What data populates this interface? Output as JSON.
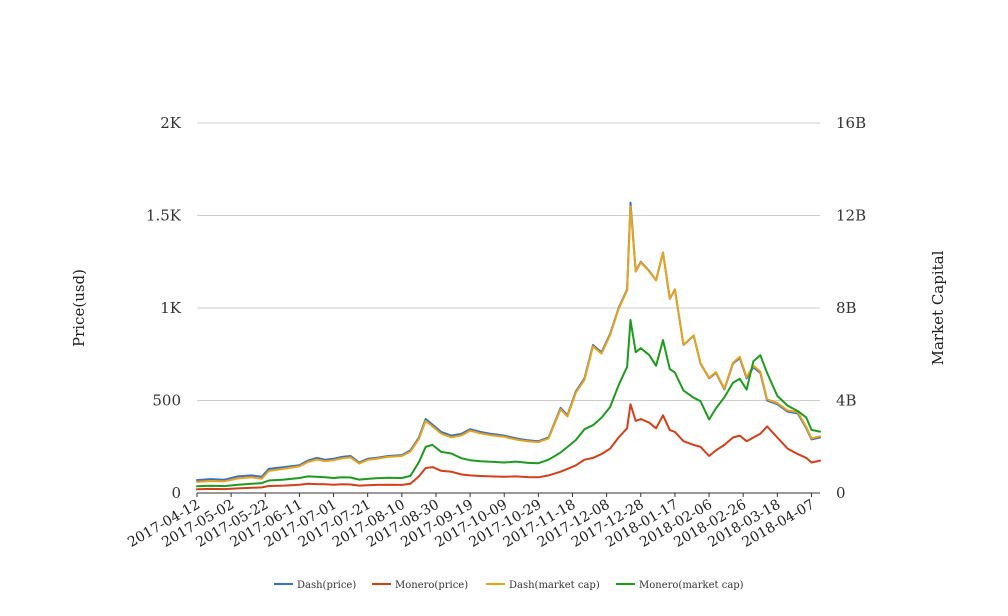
{
  "chart_data": {
    "type": "line",
    "ylabel_left": "Price(usd)",
    "ylabel_right": "Market Capital",
    "y_left_ticks": [
      "0",
      "500",
      "1K",
      "1.5K",
      "2K"
    ],
    "y_left_values": [
      0,
      500,
      1000,
      1500,
      2000
    ],
    "y_left_range": [
      0,
      2000
    ],
    "y_right_ticks": [
      "0",
      "4B",
      "8B",
      "12B",
      "16B"
    ],
    "y_right_values": [
      0,
      4000000000,
      8000000000,
      12000000000,
      16000000000
    ],
    "y_right_range": [
      0,
      16000000000
    ],
    "x_ticks": [
      "2017-04-12",
      "2017-05-02",
      "2017-05-22",
      "2017-06-11",
      "2017-07-01",
      "2017-07-21",
      "2017-08-10",
      "2017-08-30",
      "2017-09-19",
      "2017-10-09",
      "2017-10-29",
      "2017-11-18",
      "2017-12-08",
      "2017-12-28",
      "2018-01-17",
      "2018-02-06",
      "2018-02-26",
      "2018-03-18",
      "2018-04-07"
    ],
    "x_range": [
      "2017-04-12",
      "2018-04-12"
    ],
    "grid": true,
    "legend_position": "bottom",
    "series": [
      {
        "name": "Dash(price)",
        "color": "#3a6fc4",
        "axis": "left",
        "x": [
          "2017-04-12",
          "2017-04-20",
          "2017-04-28",
          "2017-05-06",
          "2017-05-14",
          "2017-05-20",
          "2017-05-24",
          "2017-06-02",
          "2017-06-11",
          "2017-06-16",
          "2017-06-21",
          "2017-06-26",
          "2017-07-01",
          "2017-07-06",
          "2017-07-11",
          "2017-07-16",
          "2017-07-21",
          "2017-07-26",
          "2017-08-02",
          "2017-08-10",
          "2017-08-15",
          "2017-08-20",
          "2017-08-24",
          "2017-08-28",
          "2017-09-02",
          "2017-09-08",
          "2017-09-14",
          "2017-09-19",
          "2017-09-25",
          "2017-10-01",
          "2017-10-09",
          "2017-10-16",
          "2017-10-23",
          "2017-10-29",
          "2017-11-04",
          "2017-11-11",
          "2017-11-15",
          "2017-11-20",
          "2017-11-25",
          "2017-11-30",
          "2017-12-05",
          "2017-12-10",
          "2017-12-15",
          "2017-12-18",
          "2017-12-20",
          "2017-12-22",
          "2017-12-25",
          "2017-12-28",
          "2018-01-02",
          "2018-01-06",
          "2018-01-10",
          "2018-01-14",
          "2018-01-17",
          "2018-01-22",
          "2018-01-28",
          "2018-02-01",
          "2018-02-06",
          "2018-02-10",
          "2018-02-15",
          "2018-02-20",
          "2018-02-24",
          "2018-02-28",
          "2018-03-04",
          "2018-03-08",
          "2018-03-12",
          "2018-03-18",
          "2018-03-24",
          "2018-03-30",
          "2018-04-04",
          "2018-04-07",
          "2018-04-12"
        ],
        "y": [
          70,
          75,
          72,
          90,
          95,
          88,
          130,
          140,
          150,
          175,
          190,
          180,
          185,
          195,
          200,
          165,
          185,
          190,
          200,
          205,
          230,
          300,
          400,
          370,
          330,
          310,
          320,
          345,
          330,
          320,
          310,
          295,
          285,
          280,
          300,
          460,
          420,
          550,
          620,
          800,
          760,
          860,
          1000,
          1060,
          1100,
          1570,
          1200,
          1250,
          1200,
          1150,
          1300,
          1050,
          1100,
          800,
          850,
          700,
          620,
          650,
          560,
          700,
          730,
          620,
          680,
          650,
          500,
          480,
          440,
          430,
          350,
          290,
          300
        ]
      },
      {
        "name": "Monero(price)",
        "color": "#d2401a",
        "axis": "left",
        "x": [
          "2017-04-12",
          "2017-04-20",
          "2017-04-28",
          "2017-05-06",
          "2017-05-14",
          "2017-05-20",
          "2017-05-24",
          "2017-06-02",
          "2017-06-11",
          "2017-06-16",
          "2017-06-21",
          "2017-06-26",
          "2017-07-01",
          "2017-07-06",
          "2017-07-11",
          "2017-07-16",
          "2017-07-21",
          "2017-07-26",
          "2017-08-02",
          "2017-08-10",
          "2017-08-15",
          "2017-08-20",
          "2017-08-24",
          "2017-08-28",
          "2017-09-02",
          "2017-09-08",
          "2017-09-14",
          "2017-09-19",
          "2017-09-25",
          "2017-10-01",
          "2017-10-09",
          "2017-10-16",
          "2017-10-23",
          "2017-10-29",
          "2017-11-04",
          "2017-11-11",
          "2017-11-15",
          "2017-11-20",
          "2017-11-25",
          "2017-11-30",
          "2017-12-05",
          "2017-12-10",
          "2017-12-15",
          "2017-12-18",
          "2017-12-20",
          "2017-12-22",
          "2017-12-25",
          "2017-12-28",
          "2018-01-02",
          "2018-01-06",
          "2018-01-10",
          "2018-01-14",
          "2018-01-17",
          "2018-01-22",
          "2018-01-28",
          "2018-02-01",
          "2018-02-06",
          "2018-02-10",
          "2018-02-15",
          "2018-02-20",
          "2018-02-24",
          "2018-02-28",
          "2018-03-04",
          "2018-03-08",
          "2018-03-12",
          "2018-03-18",
          "2018-03-24",
          "2018-03-30",
          "2018-04-04",
          "2018-04-07",
          "2018-04-12"
        ],
        "y": [
          20,
          22,
          21,
          25,
          28,
          30,
          38,
          40,
          45,
          50,
          48,
          47,
          45,
          47,
          46,
          40,
          42,
          44,
          45,
          44,
          50,
          90,
          135,
          140,
          120,
          115,
          100,
          95,
          92,
          90,
          88,
          90,
          86,
          85,
          95,
          115,
          130,
          150,
          180,
          190,
          210,
          240,
          300,
          330,
          350,
          480,
          390,
          400,
          380,
          350,
          420,
          340,
          330,
          280,
          260,
          250,
          200,
          230,
          260,
          300,
          310,
          280,
          300,
          320,
          360,
          300,
          240,
          210,
          190,
          165,
          175
        ]
      },
      {
        "name": "Dash(market cap)",
        "color": "#e8a31c",
        "axis": "right",
        "x": [
          "2017-04-12",
          "2017-04-20",
          "2017-04-28",
          "2017-05-06",
          "2017-05-14",
          "2017-05-20",
          "2017-05-24",
          "2017-06-02",
          "2017-06-11",
          "2017-06-16",
          "2017-06-21",
          "2017-06-26",
          "2017-07-01",
          "2017-07-06",
          "2017-07-11",
          "2017-07-16",
          "2017-07-21",
          "2017-07-26",
          "2017-08-02",
          "2017-08-10",
          "2017-08-15",
          "2017-08-20",
          "2017-08-24",
          "2017-08-28",
          "2017-09-02",
          "2017-09-08",
          "2017-09-14",
          "2017-09-19",
          "2017-09-25",
          "2017-10-01",
          "2017-10-09",
          "2017-10-16",
          "2017-10-23",
          "2017-10-29",
          "2017-11-04",
          "2017-11-11",
          "2017-11-15",
          "2017-11-20",
          "2017-11-25",
          "2017-11-30",
          "2017-12-05",
          "2017-12-10",
          "2017-12-15",
          "2017-12-18",
          "2017-12-20",
          "2017-12-22",
          "2017-12-25",
          "2017-12-28",
          "2018-01-02",
          "2018-01-06",
          "2018-01-10",
          "2018-01-14",
          "2018-01-17",
          "2018-01-22",
          "2018-01-28",
          "2018-02-01",
          "2018-02-06",
          "2018-02-10",
          "2018-02-15",
          "2018-02-20",
          "2018-02-24",
          "2018-02-28",
          "2018-03-04",
          "2018-03-08",
          "2018-03-12",
          "2018-03-18",
          "2018-03-24",
          "2018-03-30",
          "2018-04-04",
          "2018-04-07",
          "2018-04-12"
        ],
        "y": [
          480000000,
          520000000,
          500000000,
          630000000,
          680000000,
          620000000,
          950000000,
          1050000000,
          1150000000,
          1340000000,
          1450000000,
          1380000000,
          1420000000,
          1500000000,
          1540000000,
          1270000000,
          1430000000,
          1480000000,
          1560000000,
          1600000000,
          1790000000,
          2340000000,
          3120000000,
          2880000000,
          2570000000,
          2410000000,
          2490000000,
          2700000000,
          2580000000,
          2500000000,
          2430000000,
          2310000000,
          2230000000,
          2200000000,
          2360000000,
          3620000000,
          3310000000,
          4340000000,
          4900000000,
          6340000000,
          6030000000,
          6830000000,
          7960000000,
          8440000000,
          8760000000,
          12400000000,
          9570000000,
          9970000000,
          9580000000,
          9190000000,
          10400000000,
          8400000000,
          8810000000,
          6410000000,
          6820000000,
          5620000000,
          4980000000,
          5230000000,
          4510000000,
          5640000000,
          5890000000,
          5010000000,
          5500000000,
          5260000000,
          4050000000,
          3890000000,
          3570000000,
          3500000000,
          2850000000,
          2360000000,
          2450000000
        ]
      },
      {
        "name": "Monero(market cap)",
        "color": "#1e9a1e",
        "axis": "right",
        "x": [
          "2017-04-12",
          "2017-04-20",
          "2017-04-28",
          "2017-05-06",
          "2017-05-14",
          "2017-05-20",
          "2017-05-24",
          "2017-06-02",
          "2017-06-11",
          "2017-06-16",
          "2017-06-21",
          "2017-06-26",
          "2017-07-01",
          "2017-07-06",
          "2017-07-11",
          "2017-07-16",
          "2017-07-21",
          "2017-07-26",
          "2017-08-02",
          "2017-08-10",
          "2017-08-15",
          "2017-08-20",
          "2017-08-24",
          "2017-08-28",
          "2017-09-02",
          "2017-09-08",
          "2017-09-14",
          "2017-09-19",
          "2017-09-25",
          "2017-10-01",
          "2017-10-09",
          "2017-10-16",
          "2017-10-23",
          "2017-10-29",
          "2017-11-04",
          "2017-11-11",
          "2017-11-15",
          "2017-11-20",
          "2017-11-25",
          "2017-11-30",
          "2017-12-05",
          "2017-12-10",
          "2017-12-15",
          "2017-12-18",
          "2017-12-20",
          "2017-12-22",
          "2017-12-25",
          "2017-12-28",
          "2018-01-02",
          "2018-01-06",
          "2018-01-10",
          "2018-01-14",
          "2018-01-17",
          "2018-01-22",
          "2018-01-28",
          "2018-02-01",
          "2018-02-06",
          "2018-02-10",
          "2018-02-15",
          "2018-02-20",
          "2018-02-24",
          "2018-02-28",
          "2018-03-04",
          "2018-03-08",
          "2018-03-12",
          "2018-03-18",
          "2018-03-24",
          "2018-03-30",
          "2018-04-04",
          "2018-04-07",
          "2018-04-12"
        ],
        "y": [
          290000000,
          310000000,
          300000000,
          360000000,
          400000000,
          430000000,
          540000000,
          580000000,
          650000000,
          720000000,
          700000000,
          680000000,
          650000000,
          680000000,
          670000000,
          580000000,
          610000000,
          640000000,
          660000000,
          650000000,
          740000000,
          1330000000,
          2000000000,
          2080000000,
          1780000000,
          1710000000,
          1500000000,
          1420000000,
          1370000000,
          1350000000,
          1320000000,
          1360000000,
          1300000000,
          1290000000,
          1440000000,
          1750000000,
          1990000000,
          2290000000,
          2760000000,
          2930000000,
          3250000000,
          3720000000,
          4660000000,
          5140000000,
          5450000000,
          7480000000,
          6090000000,
          6260000000,
          5960000000,
          5500000000,
          6610000000,
          5360000000,
          5210000000,
          4430000000,
          4120000000,
          3970000000,
          3180000000,
          3660000000,
          4140000000,
          4770000000,
          4940000000,
          4470000000,
          5700000000,
          5960000000,
          5200000000,
          4200000000,
          3780000000,
          3540000000,
          3260000000,
          2730000000,
          2650000000
        ]
      }
    ]
  }
}
